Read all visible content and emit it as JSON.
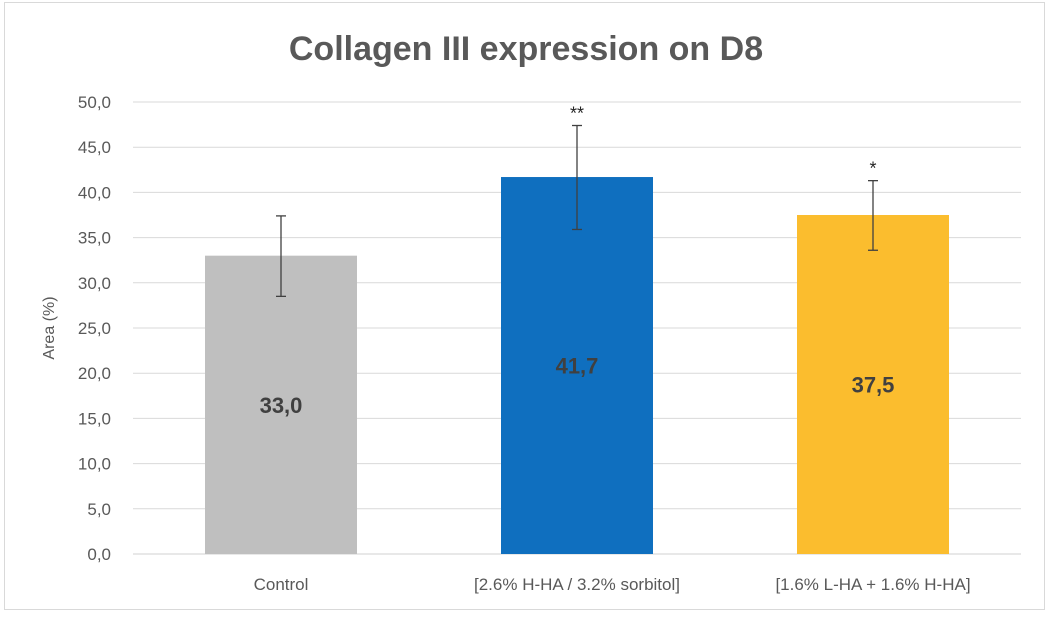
{
  "chart_data": {
    "type": "bar",
    "title": "Collagen III expression on D8",
    "xlabel": "",
    "ylabel": "Area (%)",
    "ylim": [
      0,
      50
    ],
    "yticks": [
      0,
      5,
      10,
      15,
      20,
      25,
      30,
      35,
      40,
      45,
      50
    ],
    "ytick_labels": [
      "0,0",
      "5,0",
      "10,0",
      "15,0",
      "20,0",
      "25,0",
      "30,0",
      "35,0",
      "40,0",
      "45,0",
      "50,0"
    ],
    "grid": true,
    "legend": "none",
    "categories": [
      "Control",
      "[2.6% H-HA / 3.2% sorbitol]",
      "[1.6% L-HA + 1.6% H-HA]"
    ],
    "values": [
      33.0,
      41.7,
      37.5
    ],
    "value_labels": [
      "33,0",
      "41,7",
      "37,5"
    ],
    "error_low": [
      28.5,
      35.9,
      33.6
    ],
    "error_high": [
      37.4,
      47.4,
      41.3
    ],
    "significance": [
      "",
      "**",
      "*"
    ],
    "colors": [
      "#bfbfbf",
      "#0f6fbf",
      "#fbbd2e"
    ]
  },
  "colors": {
    "grid": "#d9d9d9",
    "axis": "#595959",
    "error_bar": "#404040"
  }
}
